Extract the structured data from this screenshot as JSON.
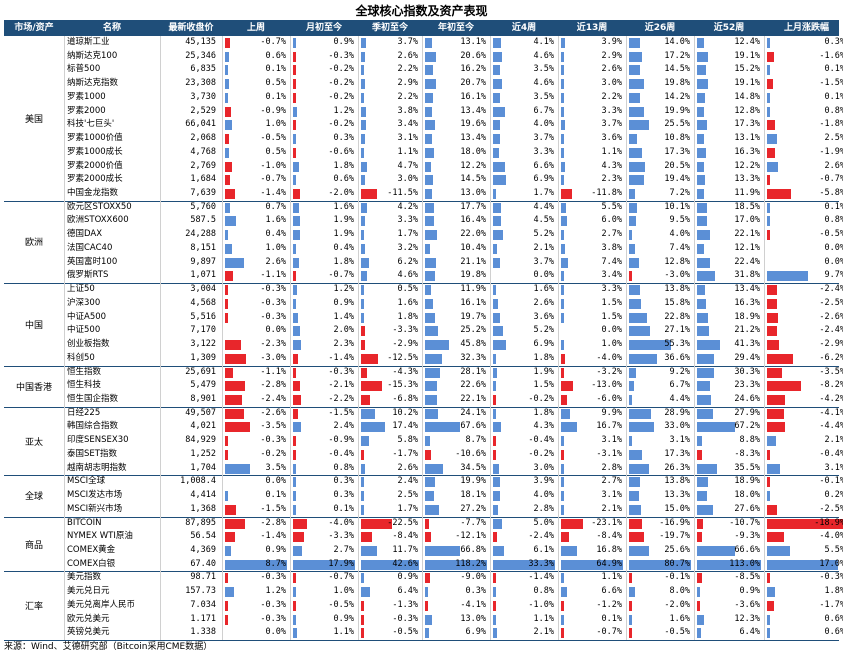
{
  "title": "全球核心指数及资产表现",
  "source": "来源：Wind、艾德研究部（Bitcoin采用CME数据）",
  "colors": {
    "header_bg": "#1f4e79",
    "header_text": "#ffffff",
    "pos_bar": "#5b8fd6",
    "neg_bar": "#e8262b",
    "grid": "#1f4e79"
  },
  "chart_data": {
    "type": "table",
    "columns": [
      "市场/资产",
      "名称",
      "最新收盘价",
      "上周",
      "月初至今",
      "季初至今",
      "年初至今",
      "近4周",
      "近13周",
      "近26周",
      "近52周",
      "上月涨跌幅"
    ],
    "groups": [
      {
        "name": "美国",
        "rows": [
          {
            "name": "道琼斯工业",
            "price": "45,135",
            "v": [
              "-0.7%",
              "0.9%",
              "3.7%",
              "13.1%",
              "4.1%",
              "3.9%",
              "14.0%",
              "12.4%",
              "0.3%"
            ]
          },
          {
            "name": "纳斯达克100",
            "price": "25,346",
            "v": [
              "0.6%",
              "-0.3%",
              "2.6%",
              "20.6%",
              "4.6%",
              "2.9%",
              "17.2%",
              "19.1%",
              "-1.6%"
            ]
          },
          {
            "name": "标普500",
            "price": "6,835",
            "v": [
              "0.1%",
              "-0.2%",
              "2.2%",
              "16.2%",
              "3.5%",
              "2.6%",
              "14.5%",
              "15.2%",
              "0.1%"
            ]
          },
          {
            "name": "纳斯达克指数",
            "price": "23,308",
            "v": [
              "0.5%",
              "-0.2%",
              "2.9%",
              "20.7%",
              "4.6%",
              "3.0%",
              "19.8%",
              "19.1%",
              "-1.5%"
            ]
          },
          {
            "name": "罗素1000",
            "price": "3,730",
            "v": [
              "0.1%",
              "-0.2%",
              "2.2%",
              "16.1%",
              "3.5%",
              "2.2%",
              "14.2%",
              "14.8%",
              "0.1%"
            ]
          },
          {
            "name": "罗素2000",
            "price": "2,529",
            "v": [
              "-0.9%",
              "1.2%",
              "3.8%",
              "13.4%",
              "6.7%",
              "3.3%",
              "19.9%",
              "12.8%",
              "0.8%"
            ]
          },
          {
            "name": "科技'七巨头'",
            "price": "66,041",
            "v": [
              "1.0%",
              "-0.2%",
              "3.4%",
              "19.6%",
              "4.0%",
              "3.7%",
              "25.5%",
              "17.3%",
              "-1.8%"
            ]
          },
          {
            "name": "罗素1000价值",
            "price": "2,068",
            "v": [
              "-0.5%",
              "0.3%",
              "3.1%",
              "13.4%",
              "3.7%",
              "3.6%",
              "10.8%",
              "13.1%",
              "2.5%"
            ]
          },
          {
            "name": "罗素1000成长",
            "price": "4,768",
            "v": [
              "0.5%",
              "-0.6%",
              "1.1%",
              "18.0%",
              "3.3%",
              "1.1%",
              "17.3%",
              "16.3%",
              "-1.9%"
            ]
          },
          {
            "name": "罗素2000价值",
            "price": "2,769",
            "v": [
              "-1.0%",
              "1.8%",
              "4.7%",
              "12.2%",
              "6.6%",
              "4.3%",
              "20.5%",
              "12.2%",
              "2.6%"
            ]
          },
          {
            "name": "罗素2000成长",
            "price": "1,684",
            "v": [
              "-0.7%",
              "0.6%",
              "3.0%",
              "14.5%",
              "6.9%",
              "2.3%",
              "19.4%",
              "13.3%",
              "-0.7%"
            ]
          },
          {
            "name": "中国金龙指数",
            "price": "7,639",
            "v": [
              "-1.4%",
              "-2.0%",
              "-11.5%",
              "13.0%",
              "1.7%",
              "-11.8%",
              "7.2%",
              "11.9%",
              "-5.8%"
            ]
          }
        ]
      },
      {
        "name": "欧洲",
        "rows": [
          {
            "name": "欧元区STOXX50",
            "price": "5,760",
            "v": [
              "0.7%",
              "1.6%",
              "4.2%",
              "17.7%",
              "4.4%",
              "5.5%",
              "10.1%",
              "18.5%",
              "0.1%"
            ]
          },
          {
            "name": "欧洲STOXX600",
            "price": "587.5",
            "v": [
              "1.6%",
              "1.9%",
              "3.3%",
              "16.4%",
              "4.5%",
              "6.0%",
              "9.5%",
              "17.0%",
              "0.8%"
            ]
          },
          {
            "name": "德国DAX",
            "price": "24,288",
            "v": [
              "0.4%",
              "1.9%",
              "1.7%",
              "22.0%",
              "5.2%",
              "2.7%",
              "4.0%",
              "22.1%",
              "-0.5%"
            ]
          },
          {
            "name": "法国CAC40",
            "price": "8,151",
            "v": [
              "1.0%",
              "0.4%",
              "3.2%",
              "10.4%",
              "2.1%",
              "3.8%",
              "7.4%",
              "12.1%",
              "0.0%"
            ]
          },
          {
            "name": "英国富时100",
            "price": "9,897",
            "v": [
              "2.6%",
              "1.8%",
              "6.2%",
              "21.1%",
              "3.7%",
              "7.4%",
              "12.8%",
              "22.4%",
              "0.0%"
            ]
          },
          {
            "name": "俄罗斯RTS",
            "price": "1,071",
            "v": [
              "-1.1%",
              "-0.7%",
              "4.6%",
              "19.8%",
              "0.0%",
              "3.4%",
              "-3.0%",
              "31.8%",
              "9.7%"
            ]
          }
        ]
      },
      {
        "name": "中国",
        "rows": [
          {
            "name": "上证50",
            "price": "3,004",
            "v": [
              "-0.3%",
              "1.2%",
              "0.5%",
              "11.9%",
              "1.6%",
              "3.3%",
              "13.8%",
              "13.4%",
              "-2.4%"
            ]
          },
          {
            "name": "沪深300",
            "price": "4,568",
            "v": [
              "-0.3%",
              "0.9%",
              "1.6%",
              "16.1%",
              "2.6%",
              "1.5%",
              "15.8%",
              "16.3%",
              "-2.5%"
            ]
          },
          {
            "name": "中证A500",
            "price": "5,516",
            "v": [
              "-0.3%",
              "1.4%",
              "1.8%",
              "19.7%",
              "3.6%",
              "1.5%",
              "22.8%",
              "18.9%",
              "-2.6%"
            ]
          },
          {
            "name": "中证500",
            "price": "7,170",
            "v": [
              "0.0%",
              "2.0%",
              "-3.3%",
              "25.2%",
              "5.2%",
              "0.0%",
              "27.1%",
              "21.2%",
              "-2.4%"
            ]
          },
          {
            "name": "创业板指数",
            "price": "3,122",
            "v": [
              "-2.3%",
              "2.3%",
              "-2.9%",
              "45.8%",
              "6.9%",
              "1.0%",
              "55.3%",
              "41.3%",
              "-2.9%"
            ]
          },
          {
            "name": "科创50",
            "price": "1,309",
            "v": [
              "-3.0%",
              "-1.4%",
              "-12.5%",
              "32.3%",
              "1.8%",
              "-4.0%",
              "36.6%",
              "29.4%",
              "-6.2%"
            ]
          }
        ]
      },
      {
        "name": "中国香港",
        "rows": [
          {
            "name": "恒生指数",
            "price": "25,691",
            "v": [
              "-1.1%",
              "-0.3%",
              "-4.3%",
              "28.1%",
              "1.9%",
              "-3.2%",
              "9.2%",
              "30.3%",
              "-3.5%"
            ]
          },
          {
            "name": "恒生科技",
            "price": "5,479",
            "v": [
              "-2.8%",
              "-2.1%",
              "-15.3%",
              "22.6%",
              "1.5%",
              "-13.0%",
              "6.7%",
              "23.3%",
              "-8.2%"
            ]
          },
          {
            "name": "恒生国企指数",
            "price": "8,901",
            "v": [
              "-2.4%",
              "-2.2%",
              "-6.8%",
              "22.1%",
              "-0.2%",
              "-6.0%",
              "4.4%",
              "24.6%",
              "-4.2%"
            ]
          }
        ]
      },
      {
        "name": "亚太",
        "rows": [
          {
            "name": "日经225",
            "price": "49,507",
            "v": [
              "-2.6%",
              "-1.5%",
              "10.2%",
              "24.1%",
              "1.8%",
              "9.9%",
              "28.9%",
              "27.9%",
              "-4.1%"
            ]
          },
          {
            "name": "韩国综合指数",
            "price": "4,021",
            "v": [
              "-3.5%",
              "2.4%",
              "17.4%",
              "67.6%",
              "4.3%",
              "16.7%",
              "33.0%",
              "67.2%",
              "-4.4%"
            ]
          },
          {
            "name": "印度SENSEX30",
            "price": "84,929",
            "v": [
              "-0.3%",
              "-0.9%",
              "5.8%",
              "8.7%",
              "-0.4%",
              "3.1%",
              "3.1%",
              "8.8%",
              "2.1%"
            ]
          },
          {
            "name": "泰国SET指数",
            "price": "1,252",
            "v": [
              "-0.2%",
              "-0.4%",
              "-1.7%",
              "-10.6%",
              "-0.2%",
              "-3.1%",
              "17.3%",
              "-8.3%",
              "-0.4%"
            ]
          },
          {
            "name": "越南胡志明指数",
            "price": "1,704",
            "v": [
              "3.5%",
              "0.8%",
              "2.6%",
              "34.5%",
              "3.0%",
              "2.8%",
              "26.3%",
              "35.5%",
              "3.1%"
            ]
          }
        ]
      },
      {
        "name": "全球",
        "rows": [
          {
            "name": "MSCI全球",
            "price": "1,008.4",
            "v": [
              "0.0%",
              "0.3%",
              "2.4%",
              "19.9%",
              "3.9%",
              "2.7%",
              "13.8%",
              "18.9%",
              "-0.1%"
            ]
          },
          {
            "name": "MSCI发达市场",
            "price": "4,414",
            "v": [
              "0.1%",
              "0.3%",
              "2.5%",
              "18.1%",
              "4.0%",
              "3.1%",
              "13.3%",
              "18.0%",
              "0.2%"
            ]
          },
          {
            "name": "MSCI新兴市场",
            "price": "1,368",
            "v": [
              "-1.5%",
              "0.1%",
              "1.7%",
              "27.2%",
              "2.8%",
              "2.1%",
              "15.0%",
              "27.6%",
              "-2.5%"
            ]
          }
        ]
      },
      {
        "name": "商品",
        "rows": [
          {
            "name": "BITCOIN",
            "price": "87,895",
            "v": [
              "-2.8%",
              "-4.0%",
              "-22.5%",
              "-7.7%",
              "5.0%",
              "-23.1%",
              "-16.9%",
              "-10.7%",
              "-18.9%"
            ]
          },
          {
            "name": "NYMEX WTI原油",
            "price": "56.54",
            "v": [
              "-1.4%",
              "-3.3%",
              "-8.4%",
              "-12.1%",
              "-2.4%",
              "-8.4%",
              "-19.7%",
              "-9.3%",
              "-4.0%"
            ]
          },
          {
            "name": "COMEX黄金",
            "price": "4,369",
            "v": [
              "0.9%",
              "2.7%",
              "11.7%",
              "66.8%",
              "6.1%",
              "16.8%",
              "25.6%",
              "66.6%",
              "5.5%"
            ]
          },
          {
            "name": "COMEX白银",
            "price": "67.40",
            "v": [
              "8.7%",
              "17.9%",
              "42.6%",
              "118.2%",
              "33.3%",
              "64.9%",
              "80.7%",
              "113.0%",
              "17.0%"
            ]
          }
        ]
      },
      {
        "name": "汇率",
        "rows": [
          {
            "name": "美元指数",
            "price": "98.71",
            "v": [
              "-0.3%",
              "-0.7%",
              "0.9%",
              "-9.0%",
              "-1.4%",
              "1.1%",
              "-0.1%",
              "-8.5%",
              "-0.3%"
            ]
          },
          {
            "name": "美元兑日元",
            "price": "157.73",
            "v": [
              "1.2%",
              "1.0%",
              "6.4%",
              "0.3%",
              "0.8%",
              "6.6%",
              "8.0%",
              "0.9%",
              "1.8%"
            ]
          },
          {
            "name": "美元兑离岸人民币",
            "price": "7.034",
            "v": [
              "-0.3%",
              "-0.5%",
              "-1.3%",
              "-4.1%",
              "-1.0%",
              "-1.2%",
              "-2.0%",
              "-3.6%",
              "-1.7%"
            ]
          },
          {
            "name": "欧元兑美元",
            "price": "1.171",
            "v": [
              "-0.3%",
              "0.9%",
              "-0.3%",
              "13.0%",
              "1.1%",
              "0.1%",
              "1.6%",
              "12.3%",
              "0.6%"
            ]
          },
          {
            "name": "英镑兑美元",
            "price": "1.338",
            "v": [
              "0.0%",
              "1.1%",
              "-0.5%",
              "6.9%",
              "2.1%",
              "-0.7%",
              "-0.5%",
              "6.4%",
              "0.6%"
            ]
          }
        ]
      }
    ]
  }
}
